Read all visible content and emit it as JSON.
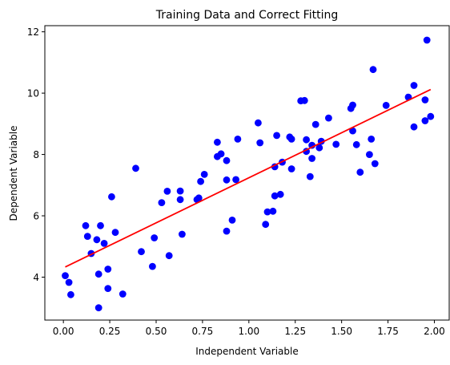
{
  "chart_data": {
    "type": "scatter",
    "title": "Training Data and Correct Fitting",
    "xlabel": "Independent Variable",
    "ylabel": "Dependent Variable",
    "xlim": [
      -0.1,
      2.08
    ],
    "ylim": [
      2.6,
      12.2
    ],
    "xticks": [
      0.0,
      0.25,
      0.5,
      0.75,
      1.0,
      1.25,
      1.5,
      1.75,
      2.0
    ],
    "xtick_labels": [
      "0.00",
      "0.25",
      "0.50",
      "0.75",
      "1.00",
      "1.25",
      "1.50",
      "1.75",
      "2.00"
    ],
    "yticks": [
      4,
      6,
      8,
      10,
      12
    ],
    "ytick_labels": [
      "4",
      "6",
      "8",
      "10",
      "12"
    ],
    "grid": false,
    "points_color": "#0000ff",
    "fit_color": "#ff0000",
    "points": [
      [
        0.01,
        4.05
      ],
      [
        0.03,
        3.83
      ],
      [
        0.04,
        3.43
      ],
      [
        0.12,
        5.68
      ],
      [
        0.13,
        5.33
      ],
      [
        0.15,
        4.77
      ],
      [
        0.18,
        5.22
      ],
      [
        0.19,
        3.0
      ],
      [
        0.19,
        4.1
      ],
      [
        0.2,
        5.68
      ],
      [
        0.22,
        5.1
      ],
      [
        0.24,
        3.63
      ],
      [
        0.24,
        4.26
      ],
      [
        0.26,
        6.62
      ],
      [
        0.28,
        5.46
      ],
      [
        0.32,
        3.45
      ],
      [
        0.39,
        7.55
      ],
      [
        0.42,
        4.83
      ],
      [
        0.48,
        4.35
      ],
      [
        0.49,
        5.28
      ],
      [
        0.53,
        6.43
      ],
      [
        0.56,
        6.8
      ],
      [
        0.57,
        4.7
      ],
      [
        0.63,
        6.53
      ],
      [
        0.63,
        6.81
      ],
      [
        0.64,
        5.4
      ],
      [
        0.72,
        6.53
      ],
      [
        0.73,
        6.58
      ],
      [
        0.74,
        7.12
      ],
      [
        0.76,
        7.35
      ],
      [
        0.83,
        8.4
      ],
      [
        0.83,
        7.93
      ],
      [
        0.85,
        8.02
      ],
      [
        0.88,
        5.5
      ],
      [
        0.88,
        7.8
      ],
      [
        0.88,
        7.17
      ],
      [
        0.91,
        5.86
      ],
      [
        0.93,
        7.18
      ],
      [
        0.94,
        8.5
      ],
      [
        1.05,
        9.03
      ],
      [
        1.06,
        8.38
      ],
      [
        1.09,
        5.72
      ],
      [
        1.1,
        6.13
      ],
      [
        1.13,
        6.15
      ],
      [
        1.14,
        7.6
      ],
      [
        1.14,
        6.65
      ],
      [
        1.15,
        8.62
      ],
      [
        1.17,
        6.7
      ],
      [
        1.18,
        7.75
      ],
      [
        1.22,
        8.57
      ],
      [
        1.23,
        8.5
      ],
      [
        1.23,
        7.53
      ],
      [
        1.28,
        9.75
      ],
      [
        1.3,
        9.76
      ],
      [
        1.31,
        8.48
      ],
      [
        1.31,
        8.1
      ],
      [
        1.33,
        7.28
      ],
      [
        1.34,
        8.3
      ],
      [
        1.34,
        7.87
      ],
      [
        1.36,
        8.98
      ],
      [
        1.38,
        8.22
      ],
      [
        1.39,
        8.43
      ],
      [
        1.43,
        9.19
      ],
      [
        1.47,
        8.33
      ],
      [
        1.55,
        9.5
      ],
      [
        1.56,
        9.61
      ],
      [
        1.56,
        8.77
      ],
      [
        1.58,
        8.32
      ],
      [
        1.6,
        7.42
      ],
      [
        1.65,
        8.0
      ],
      [
        1.66,
        8.5
      ],
      [
        1.67,
        10.77
      ],
      [
        1.68,
        7.7
      ],
      [
        1.74,
        9.6
      ],
      [
        1.86,
        9.87
      ],
      [
        1.89,
        10.25
      ],
      [
        1.89,
        8.9
      ],
      [
        1.95,
        9.78
      ],
      [
        1.95,
        9.1
      ],
      [
        1.96,
        11.73
      ],
      [
        1.98,
        9.24
      ]
    ],
    "fit_line": {
      "x": [
        0.01,
        1.98
      ],
      "y": [
        4.33,
        10.12
      ]
    }
  }
}
